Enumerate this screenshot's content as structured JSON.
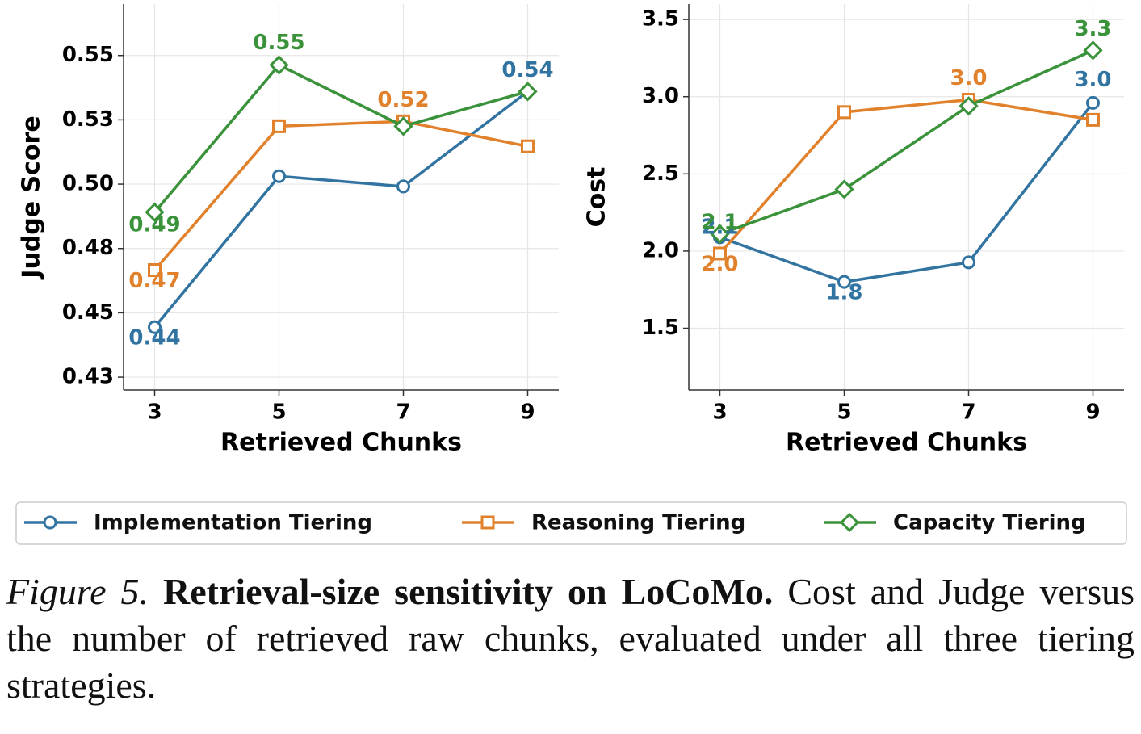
{
  "chart_data": [
    {
      "type": "line",
      "y_label": "Judge Score",
      "x_label": "Retrieved Chunks",
      "x": [
        3,
        5,
        7,
        9
      ],
      "xlim": [
        2.5,
        9.5
      ],
      "xticks": [
        3,
        5,
        7,
        9
      ],
      "ylim": [
        0.42,
        0.57
      ],
      "yticks": [
        {
          "value": 0.425,
          "label": "0.43"
        },
        0.45,
        {
          "value": 0.475,
          "label": "0.48"
        },
        {
          "value": 0.5,
          "label": "0.50"
        },
        {
          "value": 0.525,
          "label": "0.53"
        },
        0.55
      ],
      "grid": true,
      "series": [
        {
          "name": "Implementation Tiering",
          "color": "#3274a1",
          "marker": "circle",
          "values": [
            0.4444,
            0.5031,
            0.4991,
            0.536
          ],
          "value_labels": [
            "0.44",
            null,
            null,
            "0.54"
          ]
        },
        {
          "name": "Reasoning Tiering",
          "color": "#e1812c",
          "marker": "square",
          "values": [
            0.4666,
            0.5225,
            0.5244,
            0.5147
          ],
          "value_labels": [
            "0.47",
            null,
            "0.52",
            null
          ]
        },
        {
          "name": "Capacity Tiering",
          "color": "#3a923a",
          "marker": "diamond",
          "values": [
            0.4891,
            0.5463,
            0.5225,
            0.536
          ],
          "value_labels": [
            "0.49",
            "0.55",
            null,
            null
          ]
        }
      ]
    },
    {
      "type": "line",
      "y_label": "Cost",
      "x_label": "Retrieved Chunks",
      "x": [
        3,
        5,
        7,
        9
      ],
      "xlim": [
        2.5,
        9.5
      ],
      "xticks": [
        3,
        5,
        7,
        9
      ],
      "ylim": [
        1.1,
        3.6
      ],
      "yticks": [
        1.5,
        {
          "value": 2,
          "label": "2.0"
        },
        2.5,
        {
          "value": 3,
          "label": "3.0"
        },
        3.5
      ],
      "grid": true,
      "series": [
        {
          "color": "#3274a1",
          "marker": "circle",
          "values": [
            2.089,
            1.8,
            1.927,
            2.96
          ],
          "value_labels": [
            "2.1",
            "1.8",
            null,
            "3.0"
          ]
        },
        {
          "color": "#e1812c",
          "marker": "square",
          "values": [
            1.984,
            2.9,
            2.98,
            2.85
          ],
          "value_labels": [
            "2.0",
            null,
            "3.0",
            null
          ]
        },
        {
          "color": "#3a923a",
          "marker": "diamond",
          "values": [
            2.11,
            2.4,
            2.94,
            3.3
          ],
          "value_labels": [
            "2.1",
            null,
            null,
            "3.3"
          ]
        }
      ]
    }
  ],
  "caption": {
    "label": "Figure 5.",
    "title": "Retrieval-size sensitivity on LoCoMo.",
    "text": "Cost and Judge versus the number of retrieved raw chunks, evaluated under all three tiering strategies."
  }
}
